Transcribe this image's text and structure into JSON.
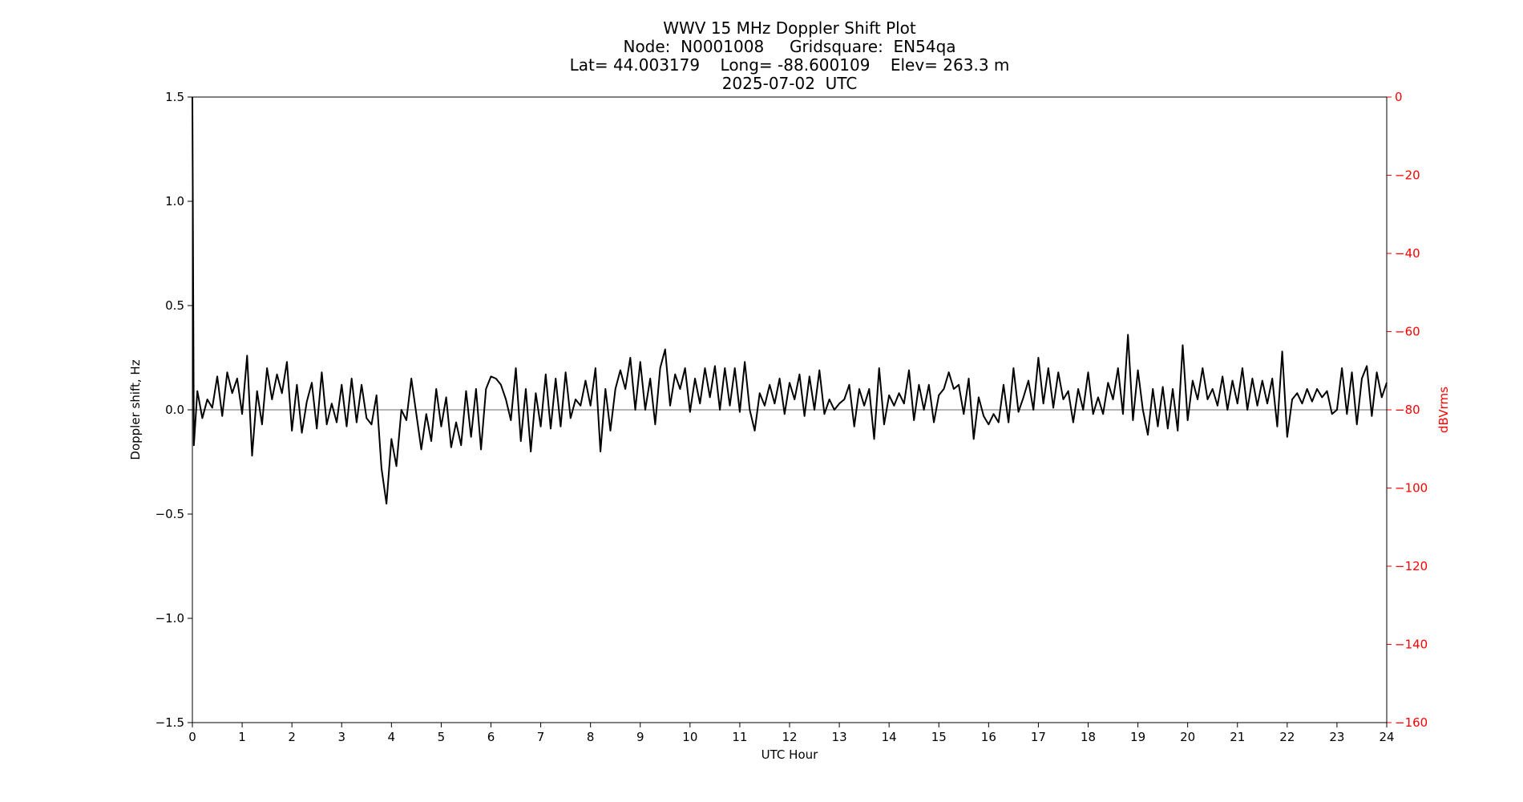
{
  "chart_data": {
    "type": "line",
    "title": [
      "WWV 15 MHz Doppler Shift Plot",
      "Node:  N0001008     Gridsquare:  EN54qa",
      "Lat= 44.003179    Long= -88.600109    Elev= 263.3 m",
      "2025-07-02  UTC"
    ],
    "xlabel": "UTC Hour",
    "ylabel": "Doppler shift, Hz",
    "y2label": "dBVrms",
    "color": "#000000",
    "y2color": "#ff0000",
    "xlim": [
      0,
      24
    ],
    "xticks": [
      0,
      1,
      2,
      3,
      4,
      5,
      6,
      7,
      8,
      9,
      10,
      11,
      12,
      13,
      14,
      15,
      16,
      17,
      18,
      19,
      20,
      21,
      22,
      23,
      24
    ],
    "ylim": [
      -1.5,
      1.5
    ],
    "yticks": [
      {
        "value": -1.5,
        "label": "−1.5"
      },
      {
        "value": -1,
        "label": "−1.0"
      },
      {
        "value": -0.5,
        "label": "−0.5"
      },
      {
        "value": 0,
        "label": "0.0"
      },
      0.5,
      {
        "value": 1,
        "label": "1.0"
      },
      1.5
    ],
    "y2lim": [
      -160,
      0
    ],
    "y2ticks": [
      {
        "value": -160,
        "label": "−160"
      },
      {
        "value": -140,
        "label": "−140"
      },
      {
        "value": -120,
        "label": "−120"
      },
      {
        "value": -100,
        "label": "−100"
      },
      {
        "value": -80,
        "label": "−80"
      },
      {
        "value": -60,
        "label": "−60"
      },
      {
        "value": -40,
        "label": "−40"
      },
      {
        "value": -20,
        "label": "−20"
      },
      0
    ],
    "x": [
      0,
      0.03,
      0.1,
      0.2,
      0.3,
      0.4,
      0.5,
      0.6,
      0.7,
      0.8,
      0.9,
      1.0,
      1.1,
      1.2,
      1.3,
      1.4,
      1.5,
      1.6,
      1.7,
      1.8,
      1.9,
      2.0,
      2.1,
      2.2,
      2.3,
      2.4,
      2.5,
      2.6,
      2.7,
      2.8,
      2.9,
      3.0,
      3.1,
      3.2,
      3.3,
      3.4,
      3.5,
      3.6,
      3.7,
      3.8,
      3.9,
      4.0,
      4.1,
      4.2,
      4.3,
      4.4,
      4.5,
      4.6,
      4.7,
      4.8,
      4.9,
      5.0,
      5.1,
      5.2,
      5.3,
      5.4,
      5.5,
      5.6,
      5.7,
      5.8,
      5.9,
      6.0,
      6.1,
      6.2,
      6.3,
      6.4,
      6.5,
      6.6,
      6.7,
      6.8,
      6.9,
      7.0,
      7.1,
      7.2,
      7.3,
      7.4,
      7.5,
      7.6,
      7.7,
      7.8,
      7.9,
      8.0,
      8.1,
      8.2,
      8.3,
      8.4,
      8.5,
      8.6,
      8.7,
      8.8,
      8.9,
      9.0,
      9.1,
      9.2,
      9.3,
      9.4,
      9.5,
      9.6,
      9.7,
      9.8,
      9.9,
      10.0,
      10.1,
      10.2,
      10.3,
      10.4,
      10.5,
      10.6,
      10.7,
      10.8,
      10.9,
      11.0,
      11.1,
      11.2,
      11.3,
      11.4,
      11.5,
      11.6,
      11.7,
      11.8,
      11.9,
      12.0,
      12.1,
      12.2,
      12.3,
      12.4,
      12.5,
      12.6,
      12.7,
      12.8,
      12.9,
      13.0,
      13.1,
      13.2,
      13.3,
      13.4,
      13.5,
      13.6,
      13.7,
      13.8,
      13.9,
      14.0,
      14.1,
      14.2,
      14.3,
      14.4,
      14.5,
      14.6,
      14.7,
      14.8,
      14.9,
      15.0,
      15.1,
      15.2,
      15.3,
      15.4,
      15.5,
      15.6,
      15.7,
      15.8,
      15.9,
      16.0,
      16.1,
      16.2,
      16.3,
      16.4,
      16.5,
      16.6,
      16.7,
      16.8,
      16.9,
      17.0,
      17.1,
      17.2,
      17.3,
      17.4,
      17.5,
      17.6,
      17.7,
      17.8,
      17.9,
      18.0,
      18.1,
      18.2,
      18.3,
      18.4,
      18.5,
      18.6,
      18.7,
      18.8,
      18.9,
      19.0,
      19.1,
      19.2,
      19.3,
      19.4,
      19.5,
      19.6,
      19.7,
      19.8,
      19.9,
      20.0,
      20.1,
      20.2,
      20.3,
      20.4,
      20.5,
      20.6,
      20.7,
      20.8,
      20.9,
      21.0,
      21.1,
      21.2,
      21.3,
      21.4,
      21.5,
      21.6,
      21.7,
      21.8,
      21.9,
      22.0,
      22.1,
      22.2,
      22.3,
      22.4,
      22.5,
      22.6,
      22.7,
      22.8,
      22.9,
      23.0,
      23.1,
      23.2,
      23.3,
      23.4,
      23.5,
      23.6,
      23.7,
      23.8,
      23.9,
      24.0
    ],
    "values": [
      1.5,
      -0.17,
      0.09,
      -0.04,
      0.05,
      0.01,
      0.16,
      -0.03,
      0.18,
      0.08,
      0.15,
      -0.02,
      0.26,
      -0.22,
      0.09,
      -0.07,
      0.2,
      0.05,
      0.17,
      0.08,
      0.23,
      -0.1,
      0.12,
      -0.11,
      0.04,
      0.13,
      -0.09,
      0.18,
      -0.07,
      0.03,
      -0.06,
      0.12,
      -0.08,
      0.15,
      -0.06,
      0.12,
      -0.04,
      -0.07,
      0.07,
      -0.28,
      -0.45,
      -0.14,
      -0.27,
      0.0,
      -0.05,
      0.15,
      -0.02,
      -0.19,
      -0.02,
      -0.15,
      0.1,
      -0.08,
      0.06,
      -0.18,
      -0.06,
      -0.17,
      0.09,
      -0.13,
      0.1,
      -0.19,
      0.1,
      0.16,
      0.15,
      0.12,
      0.05,
      -0.05,
      0.2,
      -0.15,
      0.1,
      -0.2,
      0.08,
      -0.08,
      0.17,
      -0.09,
      0.15,
      -0.08,
      0.18,
      -0.04,
      0.05,
      0.02,
      0.14,
      0.02,
      0.2,
      -0.2,
      0.1,
      -0.1,
      0.1,
      0.19,
      0.1,
      0.25,
      0.0,
      0.23,
      0.0,
      0.15,
      -0.07,
      0.2,
      0.29,
      0.02,
      0.17,
      0.1,
      0.2,
      -0.01,
      0.15,
      0.03,
      0.2,
      0.06,
      0.21,
      0.0,
      0.2,
      0.02,
      0.2,
      -0.01,
      0.23,
      0.0,
      -0.1,
      0.08,
      0.02,
      0.12,
      0.03,
      0.15,
      -0.02,
      0.13,
      0.05,
      0.17,
      -0.03,
      0.16,
      0.0,
      0.19,
      -0.02,
      0.05,
      0.0,
      0.03,
      0.05,
      0.12,
      -0.08,
      0.1,
      0.02,
      0.1,
      -0.14,
      0.2,
      -0.07,
      0.07,
      0.02,
      0.08,
      0.03,
      0.19,
      -0.05,
      0.12,
      0.0,
      0.12,
      -0.06,
      0.07,
      0.1,
      0.18,
      0.1,
      0.12,
      -0.02,
      0.15,
      -0.14,
      0.06,
      -0.03,
      -0.07,
      -0.02,
      -0.06,
      0.12,
      -0.06,
      0.2,
      -0.01,
      0.06,
      0.14,
      0.0,
      0.25,
      0.03,
      0.2,
      0.01,
      0.18,
      0.05,
      0.09,
      -0.06,
      0.1,
      0.0,
      0.18,
      -0.02,
      0.06,
      -0.02,
      0.13,
      0.05,
      0.2,
      -0.02,
      0.36,
      -0.05,
      0.19,
      0.0,
      -0.12,
      0.1,
      -0.08,
      0.11,
      -0.09,
      0.1,
      -0.1,
      0.31,
      -0.05,
      0.14,
      0.05,
      0.2,
      0.05,
      0.1,
      0.02,
      0.16,
      0.0,
      0.14,
      0.03,
      0.2,
      0.0,
      0.15,
      0.02,
      0.14,
      0.03,
      0.15,
      -0.08,
      0.28,
      -0.13,
      0.05,
      0.08,
      0.03,
      0.1,
      0.04,
      0.1,
      0.06,
      0.09,
      -0.02,
      0.0,
      0.2,
      -0.02,
      0.18,
      -0.07,
      0.15,
      0.21,
      -0.03,
      0.18,
      0.06,
      0.13
    ]
  }
}
